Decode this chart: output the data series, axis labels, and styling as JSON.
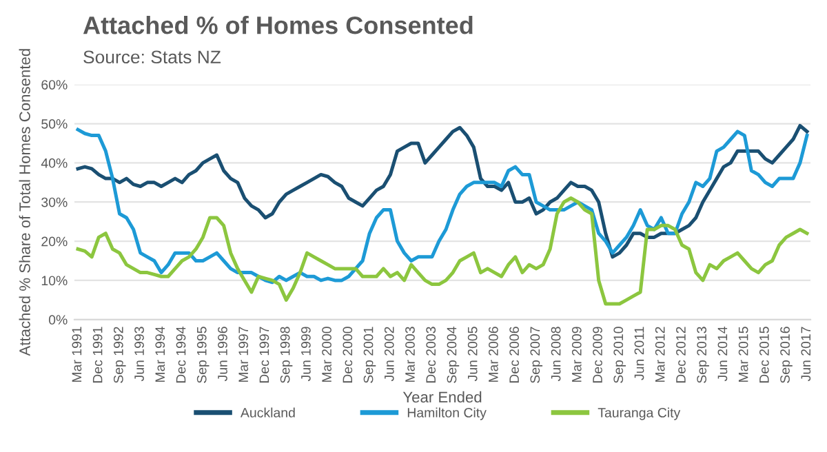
{
  "chart_data": {
    "type": "line",
    "title": "Attached % of Homes Consented",
    "subtitle": "Source: Stats NZ",
    "xlabel": "Year Ended",
    "ylabel": "Attached % Share of Total Homes Consented",
    "categories": [
      "Mar 1991",
      null,
      null,
      "Dec 1991",
      null,
      null,
      "Sep 1992",
      null,
      null,
      "Jun 1993",
      null,
      null,
      "Mar 1994",
      null,
      null,
      "Dec 1994",
      null,
      null,
      "Sep 1995",
      null,
      null,
      "Jun 1996",
      null,
      null,
      "Mar 1997",
      null,
      null,
      "Dec 1997",
      null,
      null,
      "Sep 1998",
      null,
      null,
      "Jun 1999",
      null,
      null,
      "Mar 2000",
      null,
      null,
      "Dec 2000",
      null,
      null,
      "Sep 2001",
      null,
      null,
      "Jun 2002",
      null,
      null,
      "Mar 2003",
      null,
      null,
      "Dec 2003",
      null,
      null,
      "Sep 2004",
      null,
      null,
      "Jun 2005",
      null,
      null,
      "Mar 2006",
      null,
      null,
      "Dec 2006",
      null,
      null,
      "Sep 2007",
      null,
      null,
      "Jun 2008",
      null,
      null,
      "Mar 2009",
      null,
      null,
      "Dec 2009",
      null,
      null,
      "Sep 2010",
      null,
      null,
      "Jun 2011",
      null,
      null,
      "Mar 2012",
      null,
      null,
      "Dec 2012",
      null,
      null,
      "Sep 2013",
      null,
      null,
      "Jun 2014",
      null,
      null,
      "Mar 2015",
      null,
      null,
      "Dec 2015",
      null,
      null,
      "Sep 2016",
      null,
      null,
      "Jun 2017"
    ],
    "series": [
      {
        "name": "Auckland",
        "color": "#1a4f72",
        "values": [
          38.5,
          39,
          38.5,
          37,
          36,
          36,
          35,
          36,
          34.5,
          34,
          35,
          35,
          34,
          35,
          36,
          35,
          37,
          38,
          40,
          41,
          42,
          38,
          36,
          35,
          31,
          29,
          28,
          26,
          27,
          30,
          32,
          33,
          34,
          35,
          36,
          37,
          36.5,
          35,
          34,
          31,
          30,
          29,
          31,
          33,
          34,
          37,
          43,
          44,
          45,
          45,
          40,
          42,
          44,
          46,
          48,
          49,
          47,
          44,
          36,
          34,
          34,
          33,
          35,
          30,
          30,
          31,
          27,
          28,
          30,
          31,
          33,
          35,
          34,
          34,
          33,
          30,
          22,
          16,
          17,
          19,
          22,
          22,
          21,
          21,
          22,
          22,
          22,
          23,
          24,
          26,
          30,
          33,
          36,
          39,
          40,
          43,
          43,
          43,
          43,
          41,
          40,
          42,
          44,
          46,
          49.5,
          48
        ]
      },
      {
        "name": "Hamilton City",
        "color": "#1d9ad6",
        "values": [
          48.5,
          47.5,
          47,
          47,
          43,
          36,
          27,
          26,
          23,
          17,
          16,
          15,
          12,
          14,
          17,
          17,
          17,
          15,
          15,
          16,
          17,
          15,
          13,
          12,
          12,
          12,
          11,
          10,
          9.5,
          11,
          10,
          11,
          12,
          11,
          11,
          10,
          10.5,
          10,
          10,
          11,
          13,
          15,
          22,
          26,
          28,
          28,
          20,
          17,
          15,
          16,
          16,
          16,
          20,
          23,
          28,
          32,
          34,
          35,
          35,
          35,
          35,
          34,
          38,
          39,
          37,
          37,
          30,
          29,
          28,
          28,
          28,
          29,
          30,
          29,
          28,
          22,
          20,
          17,
          19,
          21,
          24,
          28,
          24,
          23,
          26,
          22,
          22,
          27,
          30,
          35,
          34,
          36,
          43,
          44,
          46,
          48,
          47,
          38,
          37,
          35,
          34,
          36,
          36,
          36,
          40,
          47
        ]
      },
      {
        "name": "Tauranga City",
        "color": "#8cc63f",
        "values": [
          18,
          17.5,
          16,
          21,
          22,
          18,
          17,
          14,
          13,
          12,
          12,
          11.5,
          11,
          11,
          13,
          15,
          16,
          18,
          21,
          26,
          26,
          24,
          17,
          13,
          10,
          7,
          11,
          10.5,
          10,
          9,
          5,
          8,
          12,
          17,
          16,
          15,
          14,
          13,
          13,
          13,
          13,
          11,
          11,
          11,
          13,
          11,
          12,
          10,
          14,
          12,
          10,
          9,
          9,
          10,
          12,
          15,
          16,
          17,
          12,
          13,
          12,
          11,
          14,
          16,
          12,
          14,
          13,
          14,
          18,
          27,
          30,
          31,
          30,
          28,
          27,
          10,
          4,
          4,
          4,
          5,
          6,
          7,
          23,
          23,
          24,
          24,
          23,
          19,
          18,
          12,
          10,
          14,
          13,
          15,
          16,
          17,
          15,
          13,
          12,
          14,
          15,
          19,
          21,
          22,
          23,
          22
        ]
      }
    ],
    "ylim": [
      0,
      60
    ],
    "yticks": [
      {
        "value": 0,
        "label": "0%"
      },
      {
        "value": 10,
        "label": "10%"
      },
      {
        "value": 20,
        "label": "20%"
      },
      {
        "value": 30,
        "label": "30%"
      },
      {
        "value": 40,
        "label": "40%"
      },
      {
        "value": 50,
        "label": "50%"
      },
      {
        "value": 60,
        "label": "60%"
      }
    ],
    "grid": "y",
    "legend": "bottom",
    "marker": "none",
    "line_style": "solid"
  }
}
